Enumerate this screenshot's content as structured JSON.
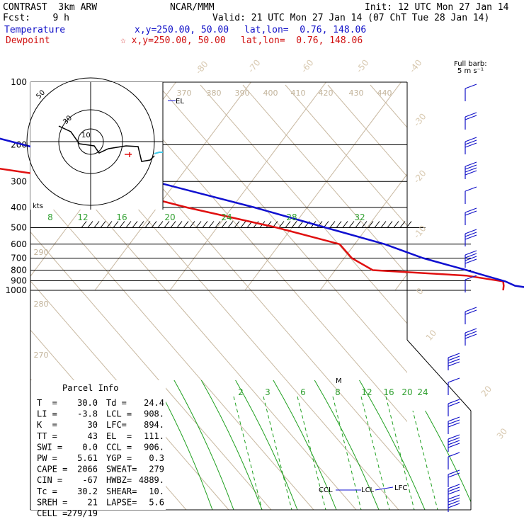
{
  "header": {
    "model": "CONTRAST  3km ARW",
    "fcst": "Fcst:    9 h",
    "center": "NCAR/MMM",
    "init": "Init: 12 UTC Mon 27 Jan 14",
    "valid": "Valid: 21 UTC Mon 27 Jan 14 (07 ChT Tue 28 Jan 14)",
    "temp_label": "Temperature",
    "temp_xy": "x,y=250.00, 50.00",
    "temp_latlon": "lat,lon=  0.76, 148.06",
    "dew_label": "Dewpoint",
    "dew_xy": "☆ x,y=250.00, 50.00",
    "dew_latlon": "lat,lon=  0.76, 148.06",
    "barb_title": "Full barb:",
    "barb_units": "5 m s⁻¹"
  },
  "colors": {
    "temperature": "#1010d0",
    "dewpoint": "#e01010",
    "mixing_ratio": "#20a020",
    "isotherm": "#c8b8a0",
    "hodograph": "#000000",
    "hodograph_storm": "#40c8e8",
    "barbs": "#1010c8"
  },
  "chart_data": {
    "type": "skew-t",
    "pressure_levels": [
      100,
      200,
      300,
      400,
      500,
      600,
      700,
      800,
      900,
      1000
    ],
    "isotherm_labels": [
      "-80",
      "-70",
      "-60",
      "-50",
      "-40",
      "-30",
      "-20",
      "-10",
      "0",
      "10",
      "20",
      "30",
      "40"
    ],
    "theta_labels": [
      "370",
      "380",
      "390",
      "400",
      "410",
      "420",
      "430",
      "440",
      "290",
      "280",
      "270"
    ],
    "mixing_ratio_labels_upper": [
      "8",
      "12",
      "16",
      "20",
      "24",
      "28",
      "32"
    ],
    "mixing_ratio_labels_lower": [
      "2",
      "3",
      "6",
      "8",
      "12",
      "16",
      "20",
      "24"
    ],
    "annotations": [
      "EL",
      "M",
      "CCL",
      "LCL",
      "LFC"
    ],
    "hodograph_ring_labels": [
      "50",
      "30",
      "10"
    ],
    "hodograph_units": "kts",
    "parcel_title": "Parcel Info",
    "parcel_rows": [
      [
        "T  =",
        "30.0",
        "Td =",
        "24.4"
      ],
      [
        "LI =",
        "-3.8",
        "LCL =",
        "908."
      ],
      [
        "K  =",
        "30",
        "LFC=",
        "894."
      ],
      [
        "TT =",
        "43",
        "EL  =",
        "111."
      ],
      [
        "SWI =",
        "0.0",
        "CCL =",
        "906."
      ],
      [
        "PW =",
        "5.61",
        "YGP =",
        "0.3"
      ],
      [
        "CAPE =",
        "2066",
        "SWEAT=",
        "279"
      ],
      [
        "CIN =",
        "-67",
        "HWBZ=",
        "4889."
      ],
      [
        "Tc =",
        "30.2",
        "SHEAR=",
        "10."
      ],
      [
        "SREH =",
        "21",
        "LAPSE=",
        "5.6"
      ],
      [
        "CELL =",
        "279/19",
        "",
        ""
      ]
    ],
    "temperature_profile": [
      {
        "p": 1000,
        "t": 30.0
      },
      {
        "p": 950,
        "t": 25.5
      },
      {
        "p": 906,
        "t": 23.8
      },
      {
        "p": 850,
        "t": 20.5
      },
      {
        "p": 800,
        "t": 17.5
      },
      {
        "p": 700,
        "t": 10.5
      },
      {
        "p": 600,
        "t": 4.0
      },
      {
        "p": 500,
        "t": -5.5
      },
      {
        "p": 400,
        "t": -17.0
      },
      {
        "p": 300,
        "t": -33.0
      },
      {
        "p": 250,
        "t": -42.0
      },
      {
        "p": 200,
        "t": -54.0
      },
      {
        "p": 150,
        "t": -70.0
      },
      {
        "p": 111,
        "t": -84.0
      },
      {
        "p": 100,
        "t": -82.0
      }
    ],
    "dewpoint_profile": [
      {
        "p": 1000,
        "t": 24.4
      },
      {
        "p": 950,
        "t": 24.0
      },
      {
        "p": 906,
        "t": 23.5
      },
      {
        "p": 850,
        "t": 18.0
      },
      {
        "p": 800,
        "t": 5.0
      },
      {
        "p": 700,
        "t": 1.0
      },
      {
        "p": 600,
        "t": -2.0
      },
      {
        "p": 500,
        "t": -12.0
      },
      {
        "p": 400,
        "t": -26.0
      },
      {
        "p": 300,
        "t": -42.0
      },
      {
        "p": 260,
        "t": -55.0
      },
      {
        "p": 200,
        "t": -65.0
      },
      {
        "p": 150,
        "t": -82.0
      },
      {
        "p": 100,
        "t": -95.0
      }
    ],
    "pressure_range": [
      100,
      1000
    ],
    "log_pressure": true
  }
}
